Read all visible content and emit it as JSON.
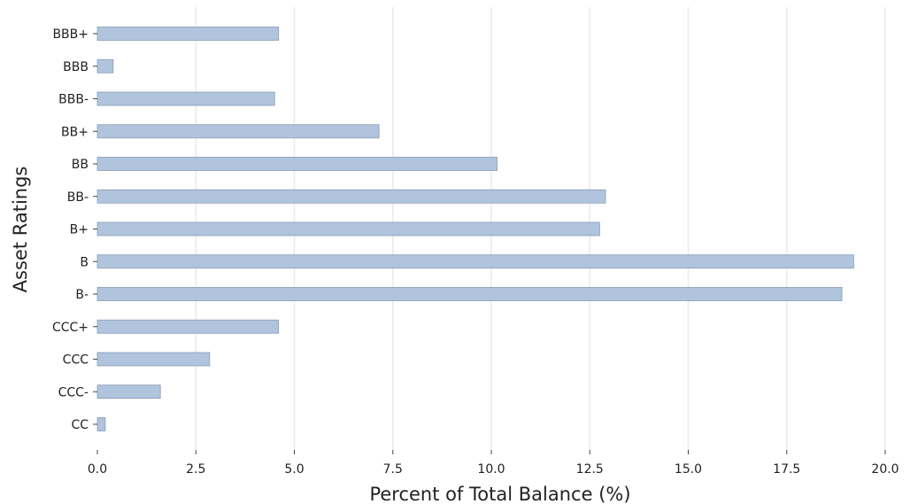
{
  "chart_data": {
    "type": "bar",
    "orientation": "horizontal",
    "title": "",
    "xlabel": "Percent of Total Balance (%)",
    "ylabel": "Asset Ratings",
    "categories": [
      "BBB+",
      "BBB",
      "BBB-",
      "BB+",
      "BB",
      "BB-",
      "B+",
      "B",
      "B-",
      "CCC+",
      "CCC",
      "CCC-",
      "CC"
    ],
    "values": [
      4.6,
      0.4,
      4.5,
      7.15,
      10.15,
      12.9,
      12.75,
      19.2,
      18.9,
      4.6,
      2.85,
      1.6,
      0.2
    ],
    "xlim": [
      0,
      20
    ],
    "xticks": [
      "0.0",
      "2.5",
      "5.0",
      "7.5",
      "10.0",
      "12.5",
      "15.0",
      "17.5",
      "20.0"
    ],
    "grid": "vertical",
    "legend": "none",
    "bar_color": "#b0c4de",
    "bar_edge_color": "#8a9bb5"
  }
}
